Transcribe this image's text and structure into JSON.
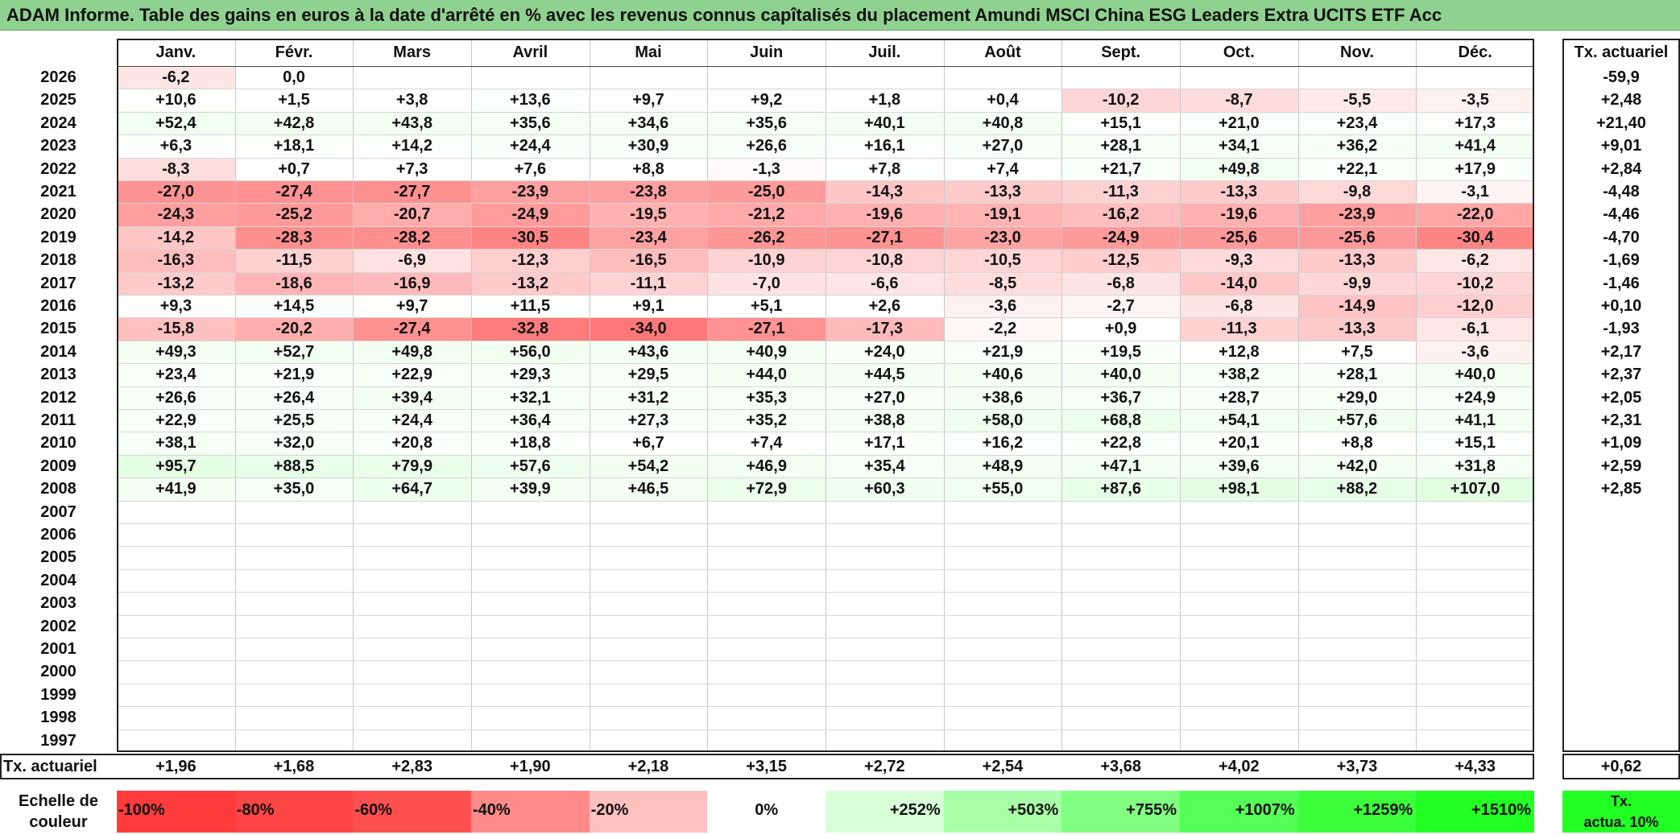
{
  "title": "ADAM Informe. Table des gains en euros à la date d'arrêté en % avec les revenus connus capîtalisés du placement Amundi MSCI China ESG Leaders Extra UCITS ETF Acc",
  "months": [
    "Janv.",
    "Févr.",
    "Mars",
    "Avril",
    "Mai",
    "Juin",
    "Juil.",
    "Août",
    "Sept.",
    "Oct.",
    "Nov.",
    "Déc."
  ],
  "annual_header": "Tx. actuariel",
  "rows": [
    {
      "year": "2026",
      "values": [
        "-6,2",
        "0,0",
        "",
        "",
        "",
        "",
        "",
        "",
        "",
        "",
        "",
        ""
      ],
      "rate": "-59,9"
    },
    {
      "year": "2025",
      "values": [
        "+10,6",
        "+1,5",
        "+3,8",
        "+13,6",
        "+9,7",
        "+9,2",
        "+1,8",
        "+0,4",
        "-10,2",
        "-8,7",
        "-5,5",
        "-3,5"
      ],
      "rate": "+2,48"
    },
    {
      "year": "2024",
      "values": [
        "+52,4",
        "+42,8",
        "+43,8",
        "+35,6",
        "+34,6",
        "+35,6",
        "+40,1",
        "+40,8",
        "+15,1",
        "+21,0",
        "+23,4",
        "+17,3"
      ],
      "rate": "+21,40"
    },
    {
      "year": "2023",
      "values": [
        "+6,3",
        "+18,1",
        "+14,2",
        "+24,4",
        "+30,9",
        "+26,6",
        "+16,1",
        "+27,0",
        "+28,1",
        "+34,1",
        "+36,2",
        "+41,4"
      ],
      "rate": "+9,01"
    },
    {
      "year": "2022",
      "values": [
        "-8,3",
        "+0,7",
        "+7,3",
        "+7,6",
        "+8,8",
        "-1,3",
        "+7,8",
        "+7,4",
        "+21,7",
        "+49,8",
        "+22,1",
        "+17,9"
      ],
      "rate": "+2,84"
    },
    {
      "year": "2021",
      "values": [
        "-27,0",
        "-27,4",
        "-27,7",
        "-23,9",
        "-23,8",
        "-25,0",
        "-14,3",
        "-13,3",
        "-11,3",
        "-13,3",
        "-9,8",
        "-3,1"
      ],
      "rate": "-4,48"
    },
    {
      "year": "2020",
      "values": [
        "-24,3",
        "-25,2",
        "-20,7",
        "-24,9",
        "-19,5",
        "-21,2",
        "-19,6",
        "-19,1",
        "-16,2",
        "-19,6",
        "-23,9",
        "-22,0"
      ],
      "rate": "-4,46"
    },
    {
      "year": "2019",
      "values": [
        "-14,2",
        "-28,3",
        "-28,2",
        "-30,5",
        "-23,4",
        "-26,2",
        "-27,1",
        "-23,0",
        "-24,9",
        "-25,6",
        "-25,6",
        "-30,4"
      ],
      "rate": "-4,70"
    },
    {
      "year": "2018",
      "values": [
        "-16,3",
        "-11,5",
        "-6,9",
        "-12,3",
        "-16,5",
        "-10,9",
        "-10,8",
        "-10,5",
        "-12,5",
        "-9,3",
        "-13,3",
        "-6,2"
      ],
      "rate": "-1,69"
    },
    {
      "year": "2017",
      "values": [
        "-13,2",
        "-18,6",
        "-16,9",
        "-13,2",
        "-11,1",
        "-7,0",
        "-6,6",
        "-8,5",
        "-6,8",
        "-14,0",
        "-9,9",
        "-10,2"
      ],
      "rate": "-1,46"
    },
    {
      "year": "2016",
      "values": [
        "+9,3",
        "+14,5",
        "+9,7",
        "+11,5",
        "+9,1",
        "+5,1",
        "+2,6",
        "-3,6",
        "-2,7",
        "-6,8",
        "-14,9",
        "-12,0"
      ],
      "rate": "+0,10"
    },
    {
      "year": "2015",
      "values": [
        "-15,8",
        "-20,2",
        "-27,4",
        "-32,8",
        "-34,0",
        "-27,1",
        "-17,3",
        "-2,2",
        "+0,9",
        "-11,3",
        "-13,3",
        "-6,1"
      ],
      "rate": "-1,93"
    },
    {
      "year": "2014",
      "values": [
        "+49,3",
        "+52,7",
        "+49,8",
        "+56,0",
        "+43,6",
        "+40,9",
        "+24,0",
        "+21,9",
        "+19,5",
        "+12,8",
        "+7,5",
        "-3,6"
      ],
      "rate": "+2,17"
    },
    {
      "year": "2013",
      "values": [
        "+23,4",
        "+21,9",
        "+22,9",
        "+29,3",
        "+29,5",
        "+44,0",
        "+44,5",
        "+40,6",
        "+40,0",
        "+38,2",
        "+28,1",
        "+40,0"
      ],
      "rate": "+2,37"
    },
    {
      "year": "2012",
      "values": [
        "+26,6",
        "+26,4",
        "+39,4",
        "+32,1",
        "+31,2",
        "+35,3",
        "+27,0",
        "+38,6",
        "+36,7",
        "+28,7",
        "+29,0",
        "+24,9"
      ],
      "rate": "+2,05"
    },
    {
      "year": "2011",
      "values": [
        "+22,9",
        "+25,5",
        "+24,4",
        "+36,4",
        "+27,3",
        "+35,2",
        "+38,8",
        "+58,0",
        "+68,8",
        "+54,1",
        "+57,6",
        "+41,1"
      ],
      "rate": "+2,31"
    },
    {
      "year": "2010",
      "values": [
        "+38,1",
        "+32,0",
        "+20,8",
        "+18,8",
        "+6,7",
        "+7,4",
        "+17,1",
        "+16,2",
        "+22,8",
        "+20,1",
        "+8,8",
        "+15,1"
      ],
      "rate": "+1,09"
    },
    {
      "year": "2009",
      "values": [
        "+95,7",
        "+88,5",
        "+79,9",
        "+57,6",
        "+54,2",
        "+46,9",
        "+35,4",
        "+48,9",
        "+47,1",
        "+39,6",
        "+42,0",
        "+31,8"
      ],
      "rate": "+2,59"
    },
    {
      "year": "2008",
      "values": [
        "+41,9",
        "+35,0",
        "+64,7",
        "+39,9",
        "+46,5",
        "+72,9",
        "+60,3",
        "+55,0",
        "+87,6",
        "+98,1",
        "+88,2",
        "+107,0"
      ],
      "rate": "+2,85"
    },
    {
      "year": "2007",
      "values": [
        "",
        "",
        "",
        "",
        "",
        "",
        "",
        "",
        "",
        "",
        "",
        ""
      ],
      "rate": ""
    },
    {
      "year": "2006",
      "values": [
        "",
        "",
        "",
        "",
        "",
        "",
        "",
        "",
        "",
        "",
        "",
        ""
      ],
      "rate": ""
    },
    {
      "year": "2005",
      "values": [
        "",
        "",
        "",
        "",
        "",
        "",
        "",
        "",
        "",
        "",
        "",
        ""
      ],
      "rate": ""
    },
    {
      "year": "2004",
      "values": [
        "",
        "",
        "",
        "",
        "",
        "",
        "",
        "",
        "",
        "",
        "",
        ""
      ],
      "rate": ""
    },
    {
      "year": "2003",
      "values": [
        "",
        "",
        "",
        "",
        "",
        "",
        "",
        "",
        "",
        "",
        "",
        ""
      ],
      "rate": ""
    },
    {
      "year": "2002",
      "values": [
        "",
        "",
        "",
        "",
        "",
        "",
        "",
        "",
        "",
        "",
        "",
        ""
      ],
      "rate": ""
    },
    {
      "year": "2001",
      "values": [
        "",
        "",
        "",
        "",
        "",
        "",
        "",
        "",
        "",
        "",
        "",
        ""
      ],
      "rate": ""
    },
    {
      "year": "2000",
      "values": [
        "",
        "",
        "",
        "",
        "",
        "",
        "",
        "",
        "",
        "",
        "",
        ""
      ],
      "rate": ""
    },
    {
      "year": "1999",
      "values": [
        "",
        "",
        "",
        "",
        "",
        "",
        "",
        "",
        "",
        "",
        "",
        ""
      ],
      "rate": ""
    },
    {
      "year": "1998",
      "values": [
        "",
        "",
        "",
        "",
        "",
        "",
        "",
        "",
        "",
        "",
        "",
        ""
      ],
      "rate": ""
    },
    {
      "year": "1997",
      "values": [
        "",
        "",
        "",
        "",
        "",
        "",
        "",
        "",
        "",
        "",
        "",
        ""
      ],
      "rate": ""
    }
  ],
  "footer": {
    "label": "Tx. actuariel",
    "values": [
      "+1,96",
      "+1,68",
      "+2,83",
      "+1,90",
      "+2,18",
      "+3,15",
      "+2,72",
      "+2,54",
      "+3,68",
      "+4,02",
      "+3,73",
      "+4,33"
    ],
    "total": "+0,62"
  },
  "scale": {
    "label_line1": "Echelle de",
    "label_line2": "couleur",
    "steps": [
      {
        "label": "-100%",
        "color": "#ff3b3b"
      },
      {
        "label": "-80%",
        "color": "#ff4545"
      },
      {
        "label": "-60%",
        "color": "#ff5050"
      },
      {
        "label": "-40%",
        "color": "#ff8a8a"
      },
      {
        "label": "-20%",
        "color": "#ffc0c0"
      },
      {
        "label": "0%",
        "color": "#ffffff"
      },
      {
        "label": "+252%",
        "color": "#d8ffd8"
      },
      {
        "label": "+503%",
        "color": "#a8ffa8"
      },
      {
        "label": "+755%",
        "color": "#80ff80"
      },
      {
        "label": "+1007%",
        "color": "#55ff55"
      },
      {
        "label": "+1259%",
        "color": "#3cff3c"
      },
      {
        "label": "+1510%",
        "color": "#22ff22"
      }
    ],
    "legend_line1": "Tx.",
    "legend_line2": "actua. 10%",
    "legend_color": "#22ff22"
  }
}
